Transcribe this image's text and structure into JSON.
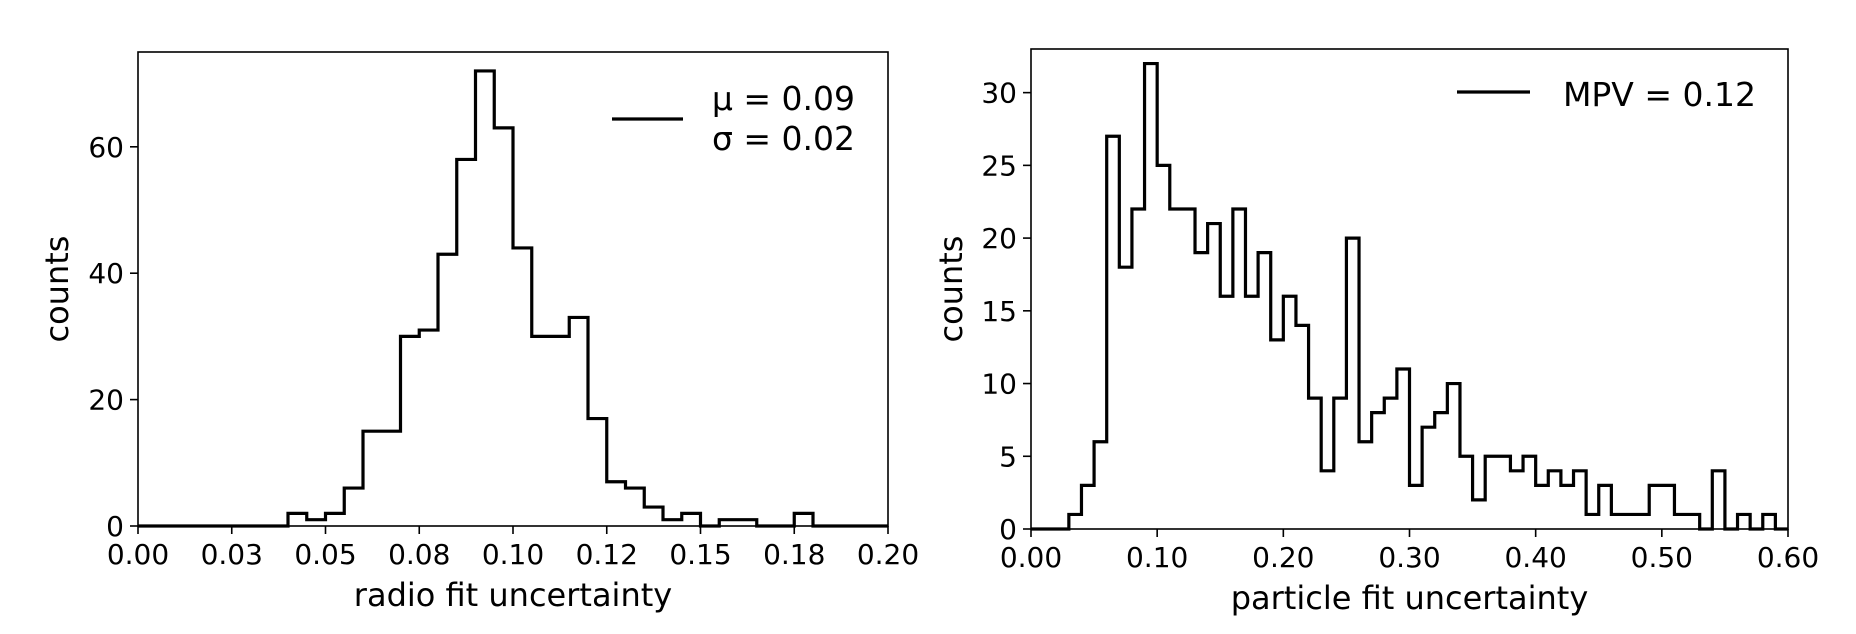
{
  "chart_data": [
    {
      "type": "histogram",
      "xlabel": "radio fit uncertainty",
      "ylabel": "counts",
      "xlim": [
        0.0,
        0.2
      ],
      "ylim": [
        0,
        75
      ],
      "xticks": [
        0.0,
        0.025,
        0.05,
        0.075,
        0.1,
        0.125,
        0.15,
        0.175,
        0.2
      ],
      "xtick_labels": [
        "0.00",
        "0.03",
        "0.05",
        "0.08",
        "0.10",
        "0.12",
        "0.15",
        "0.18",
        "0.20"
      ],
      "yticks": [
        0,
        20,
        40,
        60
      ],
      "ytick_labels": [
        "0",
        "20",
        "40",
        "60"
      ],
      "grid": false,
      "legend_position": "top-right",
      "legend": [
        {
          "label_lines": [
            "μ = 0.09",
            "σ = 0.02"
          ],
          "color": "#000000"
        }
      ],
      "bin_width": 0.005,
      "bin_edges_start": 0.0,
      "counts": [
        0,
        0,
        0,
        0,
        0,
        0,
        0,
        0,
        2,
        1,
        2,
        6,
        15,
        15,
        30,
        31,
        43,
        58,
        72,
        63,
        44,
        30,
        30,
        33,
        17,
        7,
        6,
        3,
        1,
        2,
        0,
        1,
        1,
        0,
        0,
        2,
        0,
        0,
        0,
        0
      ]
    },
    {
      "type": "histogram",
      "xlabel": "particle fit uncertainty",
      "ylabel": "counts",
      "xlim": [
        0.0,
        0.6
      ],
      "ylim": [
        0,
        33
      ],
      "xticks": [
        0.0,
        0.1,
        0.2,
        0.3,
        0.4,
        0.5,
        0.6
      ],
      "xtick_labels": [
        "0.00",
        "0.10",
        "0.20",
        "0.30",
        "0.40",
        "0.50",
        "0.60"
      ],
      "yticks": [
        0,
        5,
        10,
        15,
        20,
        25,
        30
      ],
      "ytick_labels": [
        "0",
        "5",
        "10",
        "15",
        "20",
        "25",
        "30"
      ],
      "grid": false,
      "legend_position": "top-right",
      "legend": [
        {
          "label_lines": [
            "MPV = 0.12"
          ],
          "color": "#000000"
        }
      ],
      "bin_width": 0.01,
      "bin_edges_start": 0.0,
      "counts": [
        0,
        0,
        0,
        1,
        3,
        6,
        27,
        18,
        22,
        32,
        25,
        22,
        22,
        19,
        21,
        16,
        22,
        16,
        19,
        13,
        16,
        14,
        9,
        4,
        9,
        20,
        6,
        8,
        9,
        11,
        3,
        7,
        8,
        10,
        5,
        2,
        5,
        5,
        4,
        5,
        3,
        4,
        3,
        4,
        1,
        3,
        1,
        1,
        1,
        3,
        3,
        1,
        1,
        0,
        4,
        0,
        1,
        0,
        1,
        0
      ]
    }
  ]
}
